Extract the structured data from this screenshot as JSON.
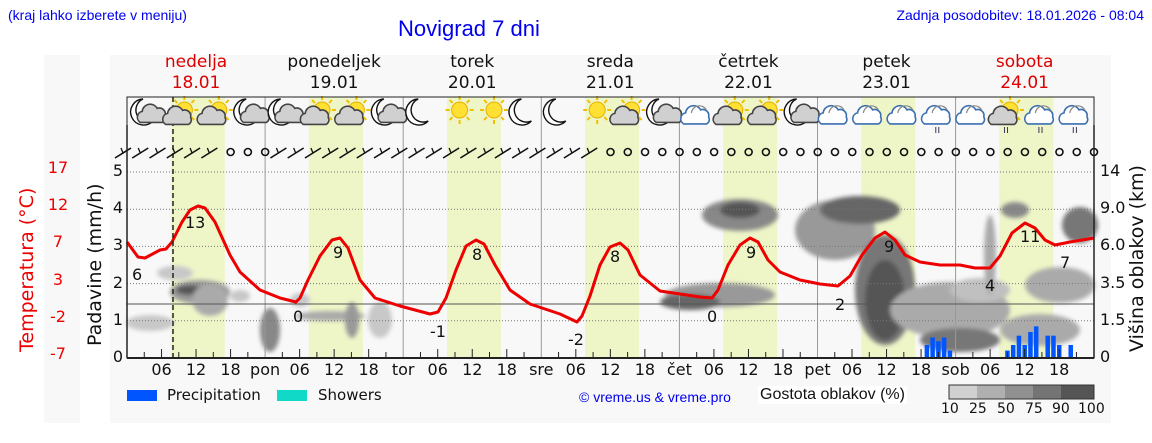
{
  "header": {
    "hint": "(kraj lahko izberete v meniju)",
    "title": "Novigrad 7 dni",
    "updated": "Zadnja posodobitev: 18.01.2026 - 08:04"
  },
  "days": [
    {
      "name": "nedelja",
      "date": "18.01",
      "weekend": true
    },
    {
      "name": "ponedeljek",
      "date": "19.01",
      "weekend": false
    },
    {
      "name": "torek",
      "date": "20.01",
      "weekend": false
    },
    {
      "name": "sreda",
      "date": "21.01",
      "weekend": false
    },
    {
      "name": "četrtek",
      "date": "22.01",
      "weekend": false
    },
    {
      "name": "petek",
      "date": "23.01",
      "weekend": false
    },
    {
      "name": "sobota",
      "date": "24.01",
      "weekend": true
    }
  ],
  "axes": {
    "temp_label": "Temperatura (°C)",
    "prec_label": "Padavine (mm/h)",
    "cloud_label": "Višina oblakov (km)",
    "temp_ticks": [
      "17",
      "12",
      "7",
      "3",
      "-2",
      "-7"
    ],
    "prec_ticks": [
      "5",
      "4",
      "3",
      "2",
      "1",
      "0"
    ],
    "cloud_ticks": [
      "14",
      "9.0",
      "6.0",
      "3.5",
      "1.5",
      "0"
    ],
    "x_ticks": [
      "06",
      "12",
      "18",
      "pon",
      "06",
      "12",
      "18",
      "tor",
      "06",
      "12",
      "18",
      "sre",
      "06",
      "12",
      "18",
      "čet",
      "06",
      "12",
      "18",
      "pet",
      "06",
      "12",
      "18",
      "sob",
      "06",
      "12",
      "18"
    ]
  },
  "legend": {
    "precipitation": "Precipitation",
    "showers": "Showers",
    "copyright": "© vreme.us & vreme.pro",
    "cloud_density": "Gostota oblakov (%)",
    "density_scale": [
      "10",
      "25",
      "50",
      "75",
      "90",
      "100"
    ]
  },
  "colors": {
    "temperature": "#ee0000",
    "precipitation": "#0055ff",
    "showers": "#11d9c8",
    "daylight": "#eef6c8",
    "title": "#0000ee"
  },
  "weather_icons": [
    "moon-cloud",
    "sun-cloud",
    "sun-cloud",
    "moon-cloud",
    "moon-cloud",
    "sun-cloud",
    "sun-cloud",
    "moon-cloud",
    "moon",
    "sun",
    "sun",
    "moon",
    "moon",
    "sun",
    "sun-cloud",
    "moon-cloud",
    "cloud",
    "sun-cloud",
    "sun-cloud",
    "moon-cloud",
    "cloud",
    "cloud",
    "cloud",
    "cloud-drizzle",
    "cloud",
    "sun-cloud-drizzle",
    "cloud-drizzle",
    "cloud-drizzle"
  ],
  "chart_data": {
    "type": "line",
    "title": "Novigrad 7 dni",
    "xlabel": "",
    "ylabel": "Temperatura (°C)",
    "ylim": [
      -7,
      17
    ],
    "grid": true,
    "series": [
      {
        "name": "Temperatura (°C)",
        "color": "#ee0000",
        "annotations": [
          {
            "day": "18.01",
            "time": "00",
            "value": 6
          },
          {
            "day": "18.01",
            "time": "12",
            "value": 13
          },
          {
            "day": "19.01",
            "time": "06",
            "value": 0
          },
          {
            "day": "19.01",
            "time": "13",
            "value": 9
          },
          {
            "day": "20.01",
            "time": "06",
            "value": -1
          },
          {
            "day": "20.01",
            "time": "13",
            "value": 8
          },
          {
            "day": "21.01",
            "time": "06",
            "value": -2
          },
          {
            "day": "21.01",
            "time": "13",
            "value": 8
          },
          {
            "day": "22.01",
            "time": "06",
            "value": 0
          },
          {
            "day": "22.01",
            "time": "13",
            "value": 9
          },
          {
            "day": "23.01",
            "time": "06",
            "value": 2
          },
          {
            "day": "23.01",
            "time": "14",
            "value": 9
          },
          {
            "day": "24.01",
            "time": "06",
            "value": 4
          },
          {
            "day": "24.01",
            "time": "12",
            "value": 11
          },
          {
            "day": "24.01",
            "time": "18",
            "value": 7
          }
        ]
      },
      {
        "name": "Precipitation (mm/h)",
        "color": "#0055ff",
        "values_note": "bars on 23.01 evening ~0.3–0.6 mm/h and 24.01 day ~0.2–0.9 mm/h",
        "bars": [
          {
            "day": "23.01",
            "time": "19",
            "value": 0.35
          },
          {
            "day": "23.01",
            "time": "20",
            "value": 0.55
          },
          {
            "day": "23.01",
            "time": "21",
            "value": 0.45
          },
          {
            "day": "23.01",
            "time": "22",
            "value": 0.55
          },
          {
            "day": "23.01",
            "time": "23",
            "value": 0.2
          },
          {
            "day": "24.01",
            "time": "09",
            "value": 0.2
          },
          {
            "day": "24.01",
            "time": "10",
            "value": 0.35
          },
          {
            "day": "24.01",
            "time": "11",
            "value": 0.6
          },
          {
            "day": "24.01",
            "time": "12",
            "value": 0.35
          },
          {
            "day": "24.01",
            "time": "13",
            "value": 0.7
          },
          {
            "day": "24.01",
            "time": "14",
            "value": 0.85
          },
          {
            "day": "24.01",
            "time": "16",
            "value": 0.6
          },
          {
            "day": "24.01",
            "time": "17",
            "value": 0.6
          },
          {
            "day": "24.01",
            "time": "18",
            "value": 0.35
          },
          {
            "day": "24.01",
            "time": "20",
            "value": 0.35
          }
        ]
      }
    ],
    "secondary_axes": {
      "precipitation_mm_h": [
        0,
        5
      ],
      "cloud_height_km": [
        "0",
        "1.5",
        "3.5",
        "6.0",
        "9.0",
        "14"
      ]
    },
    "current_time_marker": "18.01 08:04"
  }
}
